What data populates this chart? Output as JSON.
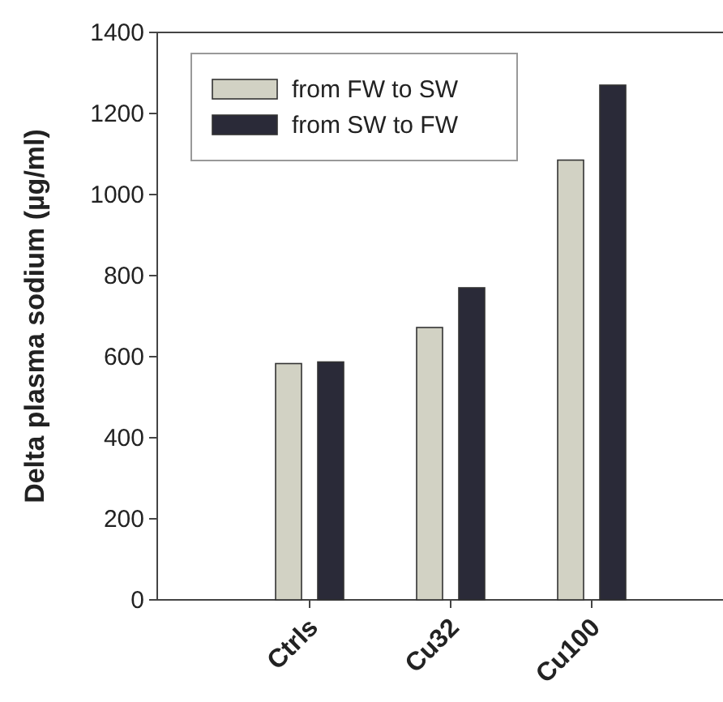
{
  "chart_data": {
    "type": "bar",
    "ylabel": "Delta plasma sodium (µg/ml)",
    "categories": [
      "Ctrls",
      "Cu32",
      "Cu100"
    ],
    "series": [
      {
        "name": "from FW to SW",
        "color": "#d2d2c4",
        "values": [
          583,
          672,
          1085
        ]
      },
      {
        "name": "from SW to FW",
        "color": "#2a2a38",
        "values": [
          587,
          770,
          1270
        ]
      }
    ],
    "ylim": [
      0,
      1400
    ],
    "yticks": [
      0,
      200,
      400,
      600,
      800,
      1000,
      1200,
      1400
    ],
    "legend": "top left",
    "grid": false
  }
}
